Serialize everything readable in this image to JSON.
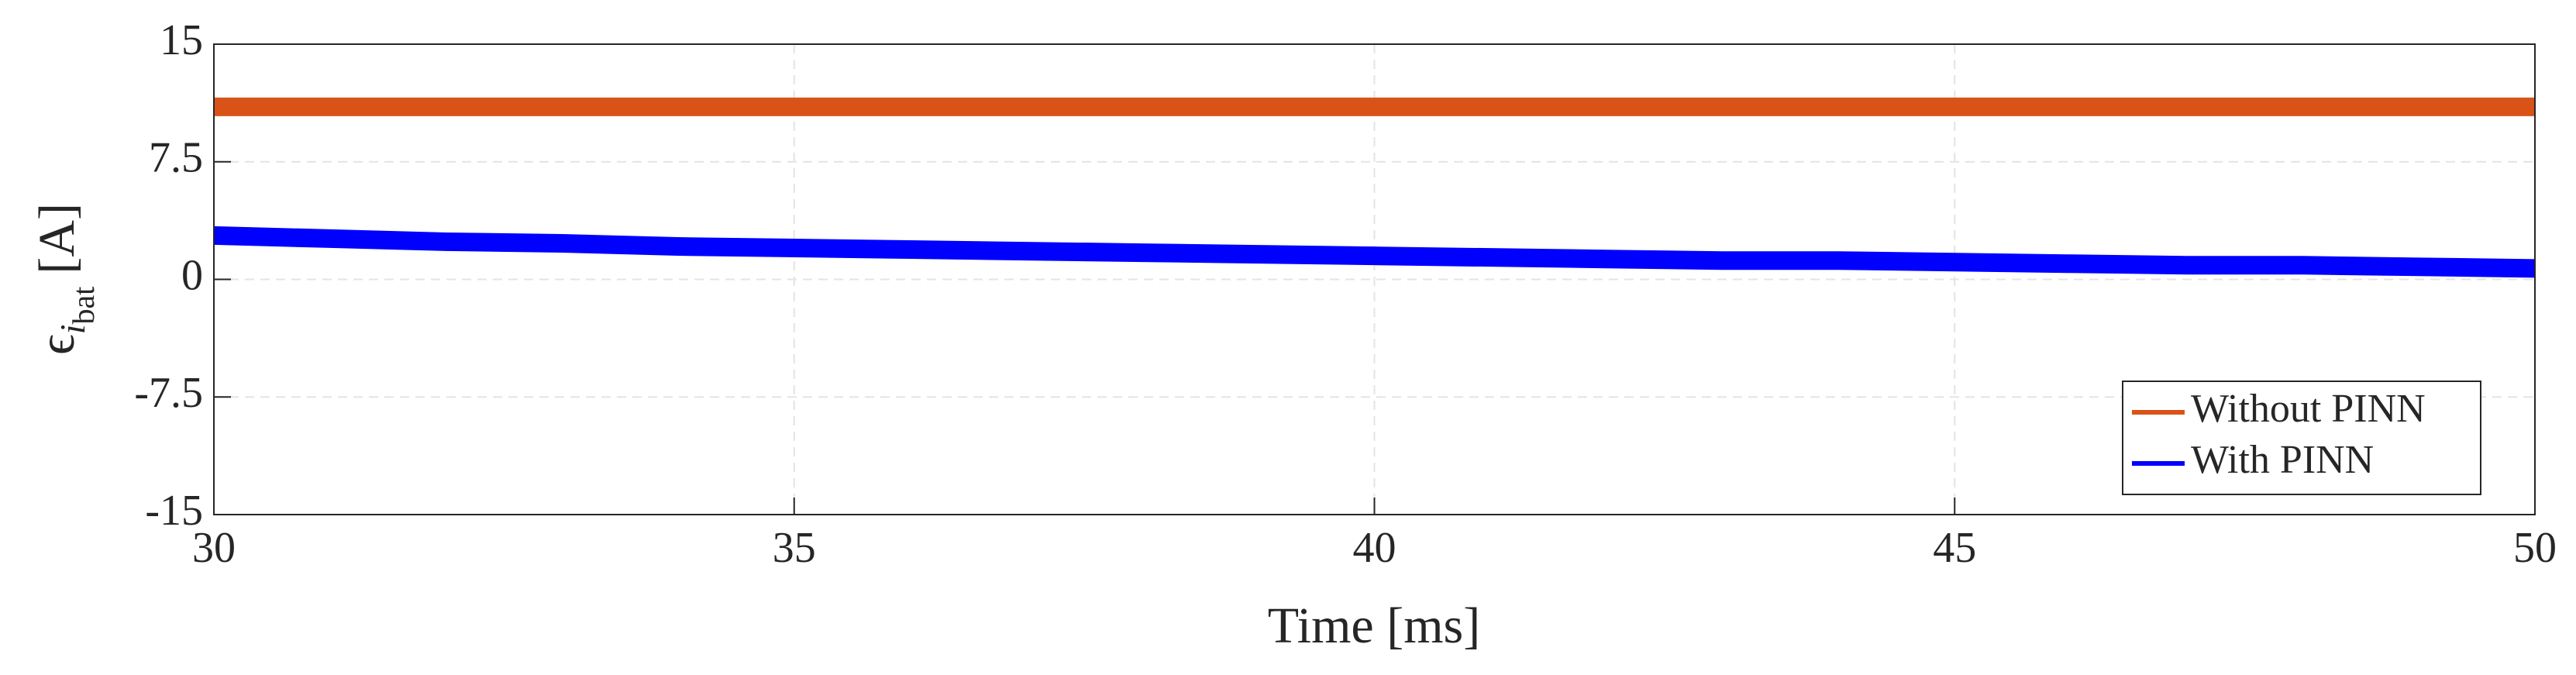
{
  "chart_data": {
    "type": "line",
    "xlabel": "Time [ms]",
    "ylabel": {
      "symbol": "ϵ",
      "sub": "i",
      "subsub": "bat",
      "unit": "[A]"
    },
    "x": [
      30,
      31,
      32,
      33,
      34,
      35,
      36,
      37,
      38,
      39,
      40,
      41,
      42,
      43,
      44,
      45,
      46,
      47,
      48,
      49,
      50
    ],
    "series": [
      {
        "name": "Without PINN",
        "color": "#d95319",
        "values": [
          11,
          11,
          11,
          11,
          11,
          11,
          11,
          11,
          11,
          11,
          11,
          11,
          11,
          11,
          11,
          11,
          11,
          11,
          11,
          11,
          11
        ]
      },
      {
        "name": "With PINN",
        "color": "#0000ff",
        "values": [
          2.8,
          2.6,
          2.4,
          2.3,
          2.1,
          2.0,
          1.9,
          1.8,
          1.7,
          1.6,
          1.5,
          1.4,
          1.3,
          1.2,
          1.2,
          1.1,
          1.0,
          0.9,
          0.9,
          0.8,
          0.7
        ]
      }
    ],
    "xlim": [
      30,
      50
    ],
    "xticks": [
      30,
      35,
      40,
      45,
      50
    ],
    "ylim": [
      -15,
      15
    ],
    "yticks": [
      -15,
      -7.5,
      0,
      7.5,
      15
    ],
    "grid": true,
    "legend": "lower-right"
  }
}
